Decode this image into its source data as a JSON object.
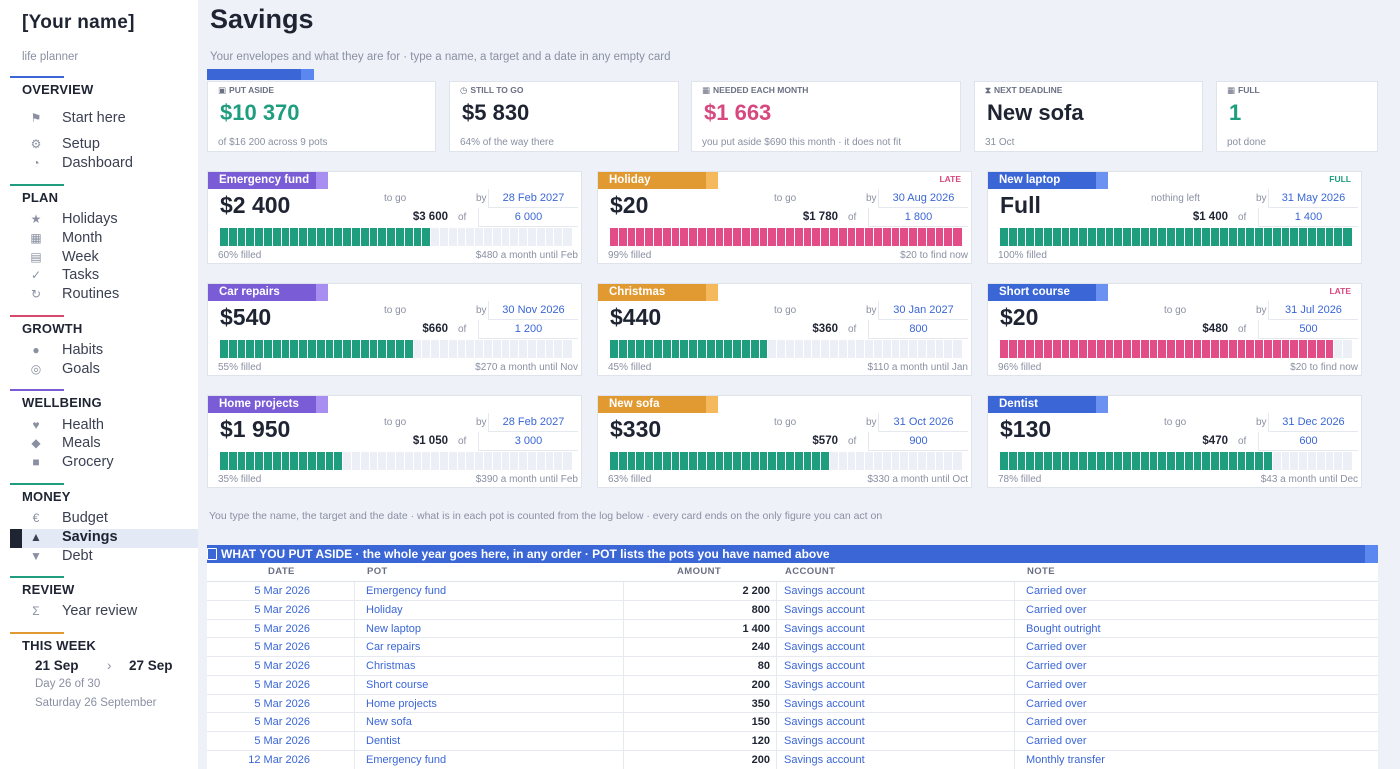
{
  "sidebar": {
    "name": "[Your name]",
    "tagline": "life planner",
    "sections": [
      {
        "title": "OVERVIEW",
        "color": "#3a66d6",
        "items": [
          {
            "label": "Start here",
            "icon": "flag-icon",
            "glyph": "⚑"
          },
          {
            "label": "Setup",
            "icon": "gear-icon",
            "glyph": "⚙"
          },
          {
            "label": "Dashboard",
            "icon": "gauge-icon",
            "glyph": "◔"
          }
        ]
      },
      {
        "title": "PLAN",
        "color": "#1f9d7f",
        "items": [
          {
            "label": "Holidays",
            "icon": "star-icon",
            "glyph": "★"
          },
          {
            "label": "Month",
            "icon": "calendar-icon",
            "glyph": "▦"
          },
          {
            "label": "Week",
            "icon": "week-icon",
            "glyph": "▤"
          },
          {
            "label": "Tasks",
            "icon": "check-icon",
            "glyph": "✓"
          },
          {
            "label": "Routines",
            "icon": "repeat-icon",
            "glyph": "↻"
          }
        ]
      },
      {
        "title": "GROWTH",
        "color": "#d6486e",
        "items": [
          {
            "label": "Habits",
            "icon": "dot-icon",
            "glyph": "●"
          },
          {
            "label": "Goals",
            "icon": "target-icon",
            "glyph": "◎"
          }
        ]
      },
      {
        "title": "WELLBEING",
        "color": "#7a5cd6",
        "items": [
          {
            "label": "Health",
            "icon": "heart-icon",
            "glyph": "♥"
          },
          {
            "label": "Meals",
            "icon": "diamond-icon",
            "glyph": "◆"
          },
          {
            "label": "Grocery",
            "icon": "square-icon",
            "glyph": "■"
          }
        ]
      },
      {
        "title": "MONEY",
        "color": "#1f9d7f",
        "items": [
          {
            "label": "Budget",
            "icon": "euro-icon",
            "glyph": "€"
          },
          {
            "label": "Savings",
            "icon": "triangle-up-icon",
            "glyph": "▲",
            "active": true
          },
          {
            "label": "Debt",
            "icon": "triangle-down-icon",
            "glyph": "▼"
          }
        ]
      },
      {
        "title": "REVIEW",
        "color": "#1f9d7f",
        "items": [
          {
            "label": "Year review",
            "icon": "sigma-icon",
            "glyph": "Σ"
          }
        ]
      }
    ],
    "week": {
      "title": "THIS WEEK",
      "color": "#e19a32",
      "from": "21 Sep",
      "arrow": "›",
      "to": "27 Sep",
      "day": "Day 26 of 30",
      "date": "Saturday 26 September"
    }
  },
  "page": {
    "title": "Savings",
    "subtitle": "Your envelopes and what they are for · type a name, a target and a date in any empty card",
    "hint": "You type the name, the target and the date · what is in each pot is counted from the log below · every card ends on the only figure you can act on"
  },
  "stats": [
    {
      "label": "PUT ASIDE",
      "icon": "wallet-icon",
      "glyph": "▣",
      "value": "$10 370",
      "color": "#1f9d7f",
      "sub": "of $16 200 across 9 pots"
    },
    {
      "label": "STILL TO GO",
      "icon": "clock-icon",
      "glyph": "◷",
      "value": "$5 830",
      "color": "#1f2433",
      "sub": "64% of the way there"
    },
    {
      "label": "NEEDED EACH MONTH",
      "icon": "calendar-icon",
      "glyph": "▦",
      "value": "$1 663",
      "color": "#d6487e",
      "sub": "you put aside $690 this month  ·  it does not fit"
    },
    {
      "label": "NEXT DEADLINE",
      "icon": "hourglass-icon",
      "glyph": "⧗",
      "value": "New sofa",
      "color": "#1f2433",
      "sub": "31 Oct"
    },
    {
      "label": "FULL",
      "icon": "box-icon",
      "glyph": "▦",
      "value": "1",
      "color": "#1f9d7f",
      "sub": "pot done"
    }
  ],
  "cards": [
    {
      "name": "Emergency fund",
      "color": "#7a5cd6",
      "edge": "#a88ef0",
      "status": "",
      "left": "$2 400",
      "togo": "to go",
      "by": "by",
      "date": "28 Feb 2027",
      "saved": "$3 600",
      "of": "of",
      "target": "6 000",
      "fill": 0.6,
      "pctText": "60% filled",
      "note": "$480 a month until Feb"
    },
    {
      "name": "Holiday",
      "color": "#e19a32",
      "edge": "#f5b85c",
      "status": "LATE",
      "left": "$20",
      "togo": "to go",
      "by": "by",
      "date": "30 Aug 2026",
      "saved": "$1 780",
      "of": "of",
      "target": "1 800",
      "fill": 0.99,
      "pctText": "99% filled",
      "note": "$20 to find now"
    },
    {
      "name": "New laptop",
      "color": "#3a66d6",
      "edge": "#6b92f0",
      "status": "FULL",
      "left": "Full",
      "togo": "nothing left",
      "by": "by",
      "date": "31 May 2026",
      "saved": "$1 400",
      "of": "of",
      "target": "1 400",
      "fill": 1.0,
      "pctText": "100% filled",
      "note": ""
    },
    {
      "name": "Car repairs",
      "color": "#7a5cd6",
      "edge": "#a88ef0",
      "status": "",
      "left": "$540",
      "togo": "to go",
      "by": "by",
      "date": "30 Nov 2026",
      "saved": "$660",
      "of": "of",
      "target": "1 200",
      "fill": 0.55,
      "pctText": "55% filled",
      "note": "$270 a month until Nov"
    },
    {
      "name": "Christmas",
      "color": "#e19a32",
      "edge": "#f5b85c",
      "status": "",
      "left": "$440",
      "togo": "to go",
      "by": "by",
      "date": "30 Jan 2027",
      "saved": "$360",
      "of": "of",
      "target": "800",
      "fill": 0.45,
      "pctText": "45% filled",
      "note": "$110 a month until Jan"
    },
    {
      "name": "Short course",
      "color": "#3a66d6",
      "edge": "#6b92f0",
      "status": "LATE",
      "left": "$20",
      "togo": "to go",
      "by": "by",
      "date": "31 Jul 2026",
      "saved": "$480",
      "of": "of",
      "target": "500",
      "fill": 0.96,
      "pctText": "96% filled",
      "note": "$20 to find now"
    },
    {
      "name": "Home projects",
      "color": "#7a5cd6",
      "edge": "#a88ef0",
      "status": "",
      "left": "$1 950",
      "togo": "to go",
      "by": "by",
      "date": "28 Feb 2027",
      "saved": "$1 050",
      "of": "of",
      "target": "3 000",
      "fill": 0.35,
      "pctText": "35% filled",
      "note": "$390 a month until Feb"
    },
    {
      "name": "New sofa",
      "color": "#e19a32",
      "edge": "#f5b85c",
      "status": "",
      "left": "$330",
      "togo": "to go",
      "by": "by",
      "date": "31 Oct 2026",
      "saved": "$570",
      "of": "of",
      "target": "900",
      "fill": 0.63,
      "pctText": "63% filled",
      "note": "$330 a month until Oct"
    },
    {
      "name": "Dentist",
      "color": "#3a66d6",
      "edge": "#6b92f0",
      "status": "",
      "left": "$130",
      "togo": "to go",
      "by": "by",
      "date": "31 Dec 2026",
      "saved": "$470",
      "of": "of",
      "target": "600",
      "fill": 0.78,
      "pctText": "78% filled",
      "note": "$43 a month until Dec"
    }
  ],
  "colors": {
    "bar_ok": "#1f9d7f",
    "bar_late": "#e24d87",
    "bar_empty": "#eceff6",
    "late_text": "#d6487e",
    "full_text": "#1f9d7f"
  },
  "log": {
    "title": "WHAT YOU PUT ASIDE  ·  the whole year goes here, in any order  ·  POT lists the pots you have named above",
    "headers": {
      "date": "DATE",
      "pot": "POT",
      "amount": "AMOUNT",
      "account": "ACCOUNT",
      "note": "NOTE"
    },
    "rows": [
      {
        "date": "5 Mar 2026",
        "pot": "Emergency fund",
        "amount": "2 200",
        "account": "Savings account",
        "note": "Carried over"
      },
      {
        "date": "5 Mar 2026",
        "pot": "Holiday",
        "amount": "800",
        "account": "Savings account",
        "note": "Carried over"
      },
      {
        "date": "5 Mar 2026",
        "pot": "New laptop",
        "amount": "1 400",
        "account": "Savings account",
        "note": "Bought outright"
      },
      {
        "date": "5 Mar 2026",
        "pot": "Car repairs",
        "amount": "240",
        "account": "Savings account",
        "note": "Carried over"
      },
      {
        "date": "5 Mar 2026",
        "pot": "Christmas",
        "amount": "80",
        "account": "Savings account",
        "note": "Carried over"
      },
      {
        "date": "5 Mar 2026",
        "pot": "Short course",
        "amount": "200",
        "account": "Savings account",
        "note": "Carried over"
      },
      {
        "date": "5 Mar 2026",
        "pot": "Home projects",
        "amount": "350",
        "account": "Savings account",
        "note": "Carried over"
      },
      {
        "date": "5 Mar 2026",
        "pot": "New sofa",
        "amount": "150",
        "account": "Savings account",
        "note": "Carried over"
      },
      {
        "date": "5 Mar 2026",
        "pot": "Dentist",
        "amount": "120",
        "account": "Savings account",
        "note": "Carried over"
      },
      {
        "date": "12 Mar 2026",
        "pot": "Emergency fund",
        "amount": "200",
        "account": "Savings account",
        "note": "Monthly transfer"
      }
    ]
  }
}
